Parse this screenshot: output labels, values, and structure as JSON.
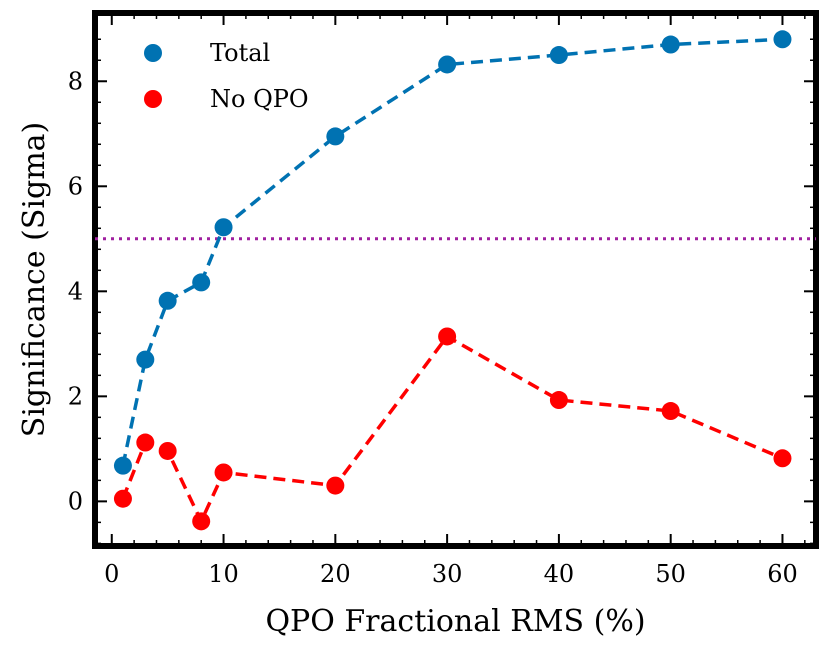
{
  "chart_data": {
    "type": "line",
    "title": "",
    "xlabel": "QPO Fractional RMS (%)",
    "ylabel": "Significance (Sigma)",
    "xlim": [
      -1.5,
      63
    ],
    "ylim": [
      -0.85,
      9.3
    ],
    "xticks": [
      0,
      10,
      20,
      30,
      40,
      50,
      60
    ],
    "yticks": [
      0,
      2,
      4,
      6,
      8
    ],
    "x": [
      1,
      3,
      5,
      8,
      10,
      20,
      30,
      40,
      50,
      60
    ],
    "series": [
      {
        "name": "Total",
        "color": "#0072b2",
        "values": [
          0.68,
          2.7,
          3.82,
          4.17,
          5.22,
          6.95,
          8.32,
          8.5,
          8.7,
          8.8
        ]
      },
      {
        "name": "No QPO",
        "color": "#ff0000",
        "values": [
          0.05,
          1.12,
          0.96,
          -0.38,
          0.55,
          0.3,
          3.14,
          1.93,
          1.72,
          0.82
        ]
      }
    ],
    "threshold": {
      "y": 5.0,
      "color": "#a020a0",
      "style": "dotted"
    },
    "legend": {
      "position": "top-left"
    },
    "grid": false
  }
}
